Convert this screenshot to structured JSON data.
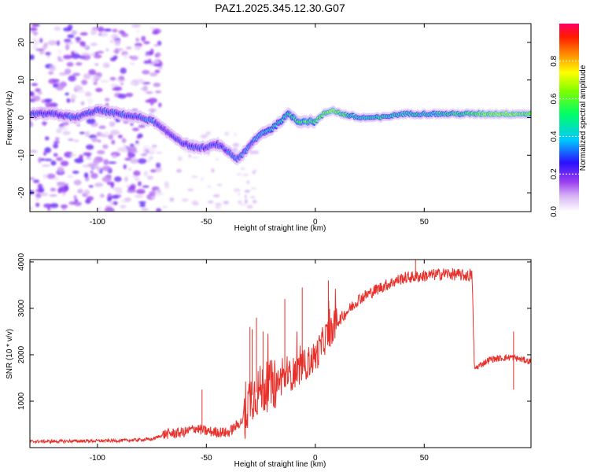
{
  "title": "PAZ1.2025.345.12.30.G07",
  "chart_data": [
    {
      "type": "heatmap",
      "name": "spectrogram",
      "xlabel": "Height of straight line (km)",
      "ylabel": "Frequency (Hz)",
      "xlim": [
        -131,
        99
      ],
      "ylim": [
        -25,
        25
      ],
      "xticks": [
        -100,
        -50,
        0,
        50
      ],
      "yticks": [
        -20,
        -10,
        0,
        10,
        20
      ],
      "colorbar": {
        "label": "Normalized spectral amplitude",
        "range": [
          0.0,
          1.0
        ],
        "ticks": [
          0.0,
          0.2,
          0.4,
          0.6,
          0.8
        ],
        "tick_labels": [
          "0.0",
          "0.2",
          "0.4",
          "0.6",
          "0.8"
        ]
      },
      "ridge": {
        "height_km": [
          -130,
          -120,
          -110,
          -100,
          -90,
          -80,
          -74,
          -70,
          -65,
          -60,
          -55,
          -50,
          -45,
          -40,
          -36,
          -32,
          -28,
          -24,
          -20,
          -16,
          -12,
          -8,
          -4,
          0,
          4,
          8,
          12,
          20,
          30,
          40,
          50,
          60,
          70,
          80,
          90,
          99
        ],
        "frequency_hz": [
          1,
          1,
          0,
          2,
          1,
          0,
          -1,
          -3,
          -5,
          -7,
          -8,
          -8,
          -7,
          -9,
          -11,
          -9,
          -6,
          -4,
          -3,
          -1,
          1,
          -1,
          -1,
          -1,
          1,
          2,
          1,
          0,
          0,
          1,
          1,
          1,
          1,
          1,
          1,
          1
        ],
        "amplitude": [
          0.3,
          0.3,
          0.3,
          0.3,
          0.3,
          0.3,
          0.35,
          0.25,
          0.28,
          0.3,
          0.28,
          0.28,
          0.3,
          0.3,
          0.3,
          0.35,
          0.35,
          0.4,
          0.45,
          0.5,
          0.55,
          0.55,
          0.6,
          0.55,
          0.6,
          0.65,
          0.6,
          0.45,
          0.5,
          0.45,
          0.45,
          0.5,
          0.55,
          0.65,
          0.7,
          0.6
        ]
      }
    },
    {
      "type": "line",
      "name": "snr",
      "xlabel": "Height of straight line (km)",
      "ylabel": "SNR (10 * v/v)",
      "xlim": [
        -131,
        99
      ],
      "ylim": [
        0,
        4050
      ],
      "xticks": [
        -100,
        -50,
        0,
        50
      ],
      "yticks": [
        1000,
        2000,
        3000,
        4000
      ],
      "color": "#e8302b",
      "trend": {
        "x": [
          -131,
          -110,
          -90,
          -75,
          -69,
          -60,
          -55,
          -50,
          -40,
          -33,
          -30,
          -25,
          -20,
          -10,
          0,
          5,
          10,
          20,
          30,
          40,
          50,
          60,
          70,
          72,
          73,
          80,
          90,
          99
        ],
        "y": [
          130,
          140,
          150,
          180,
          290,
          330,
          420,
          350,
          320,
          600,
          1100,
          1250,
          1350,
          1600,
          1950,
          2400,
          2700,
          3200,
          3450,
          3650,
          3700,
          3750,
          3700,
          3700,
          1700,
          1900,
          1950,
          1850
        ]
      },
      "spikes": [
        {
          "x": -52,
          "y": 1250
        },
        {
          "x": -30,
          "y": 2600
        },
        {
          "x": -29,
          "y": 2550
        },
        {
          "x": -27,
          "y": 2800
        },
        {
          "x": -24,
          "y": 2500
        },
        {
          "x": -14,
          "y": 3200
        },
        {
          "x": -6,
          "y": 3450
        },
        {
          "x": 6,
          "y": 3600
        },
        {
          "x": 46,
          "y": 4050
        },
        {
          "x": 71,
          "y": 3850
        },
        {
          "x": 91,
          "y": 2500
        },
        {
          "x": 91,
          "y": 1250
        }
      ]
    }
  ]
}
